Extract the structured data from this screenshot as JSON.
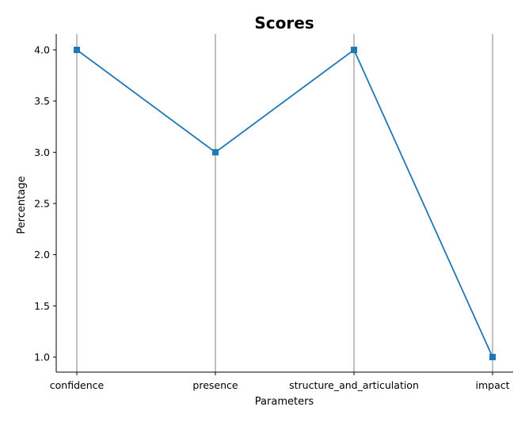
{
  "chart_data": {
    "type": "line",
    "title": "Scores",
    "xlabel": "Parameters",
    "ylabel": "Percentage",
    "categories": [
      "confidence",
      "presence",
      "structure_and_articulation",
      "impact"
    ],
    "series": [
      {
        "values": [
          4.0,
          3.0,
          4.0,
          1.0
        ],
        "color": "#1f77b4",
        "marker": "square"
      }
    ],
    "yticks": [
      "1.0",
      "1.5",
      "2.0",
      "2.5",
      "3.0",
      "3.5",
      "4.0"
    ],
    "ylim": [
      0.85,
      4.15
    ],
    "grid": "vertical-x-only"
  }
}
